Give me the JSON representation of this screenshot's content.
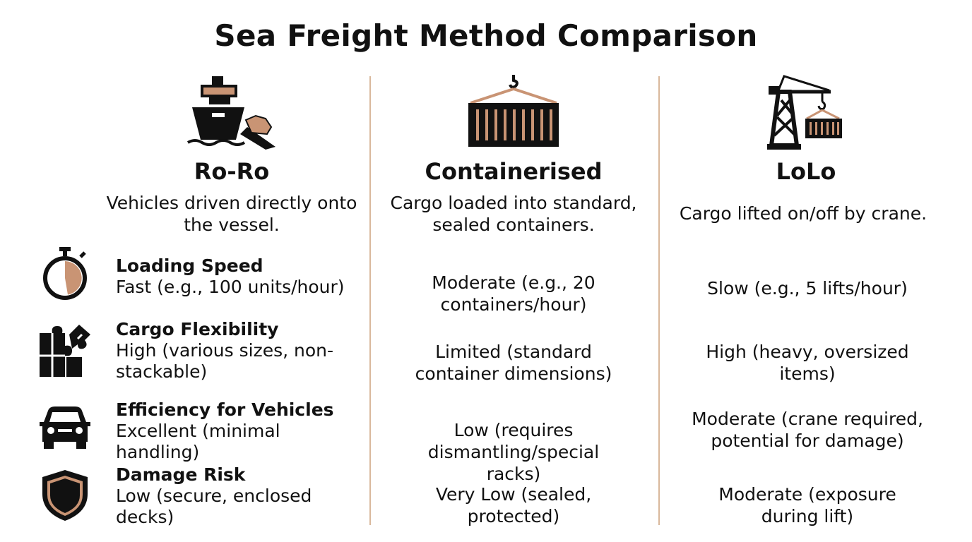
{
  "title": "Sea Freight Method Comparison",
  "colors": {
    "accent": "#c99474",
    "ink": "#111111",
    "divider": "#d9b89c"
  },
  "methods": [
    {
      "name": "Ro-Ro",
      "icon": "roro-ship-icon",
      "description": "Vehicles driven directly onto the vessel."
    },
    {
      "name": "Containerised",
      "icon": "shipping-container-icon",
      "description": "Cargo loaded into standard, sealed containers."
    },
    {
      "name": "LoLo",
      "icon": "crane-icon",
      "description": "Cargo lifted on/off by crane."
    }
  ],
  "criteria": [
    {
      "label": "Loading Speed",
      "icon": "stopwatch-icon",
      "values": [
        "Fast (e.g., 100 units/hour)",
        "Moderate (e.g., 20 containers/hour)",
        "Slow (e.g., 5 lifts/hour)"
      ]
    },
    {
      "label": "Cargo Flexibility",
      "icon": "puzzle-icon",
      "values": [
        "High (various sizes, non-stackable)",
        "Limited (standard container dimensions)",
        "High (heavy, oversized items)"
      ]
    },
    {
      "label": "Efficiency for Vehicles",
      "icon": "car-icon",
      "values": [
        "Excellent (minimal handling)",
        "Low (requires dismantling/special racks)",
        "Moderate (crane required, potential for damage)"
      ]
    },
    {
      "label": "Damage Risk",
      "icon": "shield-icon",
      "values": [
        "Low (secure, enclosed decks)",
        "Very Low (sealed, protected)",
        "Moderate (exposure during lift)"
      ]
    }
  ]
}
